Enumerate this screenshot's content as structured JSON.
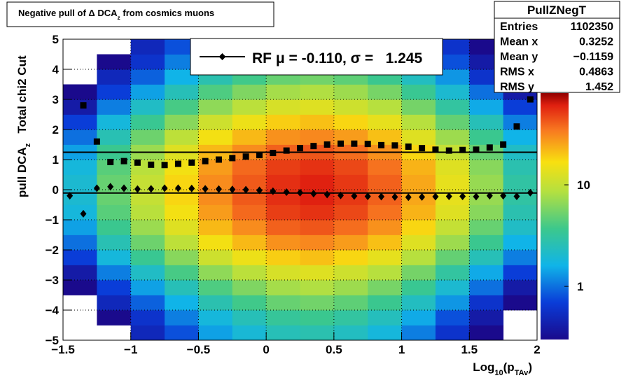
{
  "chart_data": {
    "type": "heatmap2d",
    "title_parts": [
      {
        "text": "Negative pull of Δ DCA"
      },
      {
        "text": "z",
        "sub": true
      },
      {
        "text": " from cosmics muons"
      }
    ],
    "xlabel_parts": [
      {
        "text": "Log"
      },
      {
        "text": "10",
        "sub": true
      },
      {
        "text": "(p"
      },
      {
        "text": "TAv",
        "sub": true
      },
      {
        "text": ")"
      }
    ],
    "ylabel_parts": [
      {
        "text": "pull DCA"
      },
      {
        "text": "z",
        "sub": true
      },
      {
        "text": "   Total chi2 Cut"
      }
    ],
    "xlim": [
      -1.5,
      2
    ],
    "ylim": [
      -5,
      5
    ],
    "xticks": [
      {
        "value": -1.5,
        "label": "−1.5"
      },
      {
        "value": -1,
        "label": "−1"
      },
      {
        "value": -0.5,
        "label": "−0.5"
      },
      0,
      0.5,
      1,
      1.5,
      2
    ],
    "yticks": [
      {
        "value": -5,
        "label": "−5"
      },
      {
        "value": -4,
        "label": "−4"
      },
      {
        "value": -3,
        "label": "−3"
      },
      {
        "value": -2,
        "label": "−2"
      },
      {
        "value": -1,
        "label": "−1"
      },
      0,
      1,
      2,
      3,
      4,
      5
    ],
    "grid": true,
    "zlim": [
      0.3,
      80
    ],
    "zticks": [
      1,
      10
    ],
    "zscale": "log",
    "xbins": [
      -1.5,
      -1.25,
      -1,
      -0.75,
      -0.5,
      -0.25,
      0,
      0.25,
      0.5,
      0.75,
      1,
      1.25,
      1.5,
      1.75,
      2
    ],
    "ybins": [
      -5,
      -4.5,
      -4,
      -3.5,
      -3,
      -2.5,
      -2,
      -1.5,
      -1,
      -0.5,
      0,
      0.5,
      1,
      1.5,
      2,
      2.5,
      3,
      3.5,
      4,
      4.5,
      5
    ],
    "z": [
      [
        0.1,
        0.1,
        0.2,
        0.3,
        0.4,
        0.7,
        1,
        1.4,
        1.8,
        2,
        2,
        1.8,
        1.4,
        1,
        0.7,
        0.4,
        0.3,
        0.2,
        0.1,
        0.1
      ],
      [
        0.2,
        0.3,
        0.5,
        0.7,
        1.1,
        1.8,
        2.6,
        3.6,
        4.5,
        5,
        5,
        4.5,
        3.6,
        2.6,
        1.8,
        1.1,
        0.7,
        0.5,
        0.3,
        0.2
      ],
      [
        0.5,
        0.6,
        0.9,
        1.4,
        2.2,
        3.5,
        5.2,
        7.2,
        9,
        10,
        10,
        9,
        7.2,
        5.2,
        3.5,
        2.2,
        1.4,
        0.9,
        0.6,
        0.5
      ],
      [
        0.8,
        1.1,
        1.6,
        2.5,
        4,
        6.3,
        9.4,
        13,
        16,
        18,
        18,
        16,
        13,
        9.4,
        6.3,
        4,
        2.5,
        1.6,
        1.1,
        0.8
      ],
      [
        1.4,
        1.8,
        2.7,
        4.2,
        6.6,
        11,
        16,
        22,
        27,
        30,
        30,
        27,
        22,
        16,
        11,
        6.6,
        4.2,
        2.7,
        1.8,
        1.4
      ],
      [
        1.9,
        2.5,
        3.8,
        5.9,
        9.2,
        15,
        22,
        30,
        38,
        42,
        42,
        38,
        30,
        22,
        15,
        9.2,
        5.9,
        3.8,
        2.5,
        1.9
      ],
      [
        2.5,
        3.3,
        5,
        7.7,
        12,
        19,
        29,
        40,
        50,
        55,
        55,
        50,
        40,
        29,
        19,
        12,
        7.7,
        5,
        3.3,
        2.5
      ],
      [
        2.7,
        3.6,
        5.4,
        8.4,
        13,
        21,
        31,
        43,
        54,
        60,
        60,
        54,
        43,
        31,
        21,
        13,
        8.4,
        5.4,
        3.6,
        2.7
      ],
      [
        2.3,
        3.1,
        4.7,
        7.3,
        11,
        18,
        27,
        37,
        47,
        52,
        52,
        47,
        37,
        27,
        18,
        11,
        7.3,
        4.7,
        3.1,
        2.3
      ],
      [
        1.8,
        2.4,
        3.6,
        5.6,
        8.8,
        14,
        21,
        29,
        36,
        40,
        40,
        36,
        29,
        21,
        14,
        8.8,
        5.6,
        3.6,
        2.4,
        1.8
      ],
      [
        1.1,
        1.5,
        2.3,
        3.5,
        5.5,
        8.8,
        13,
        18,
        23,
        25,
        25,
        23,
        18,
        13,
        8.8,
        5.5,
        3.5,
        2.3,
        1.5,
        1.1
      ],
      [
        0.6,
        0.8,
        1.3,
        2,
        3.1,
        4.9,
        7.3,
        10,
        13,
        14,
        14,
        13,
        10,
        7.3,
        4.9,
        3.1,
        2,
        1.3,
        0.8,
        0.6
      ],
      [
        0.3,
        0.4,
        0.6,
        1,
        1.5,
        2.5,
        3.6,
        5,
        6.3,
        7,
        7,
        6.3,
        5,
        3.6,
        2.5,
        1.5,
        1,
        0.6,
        0.4,
        0.3
      ],
      [
        0.1,
        0.2,
        0.3,
        0.4,
        0.7,
        1.1,
        1.6,
        2.2,
        2.7,
        3,
        3,
        2.7,
        2.2,
        1.6,
        1.1,
        0.7,
        0.4,
        0.3,
        0.2,
        0.1
      ]
    ],
    "x": [
      -1.45,
      -1.35,
      -1.25,
      -1.15,
      -1.05,
      -0.95,
      -0.85,
      -0.75,
      -0.65,
      -0.55,
      -0.45,
      -0.35,
      -0.25,
      -0.15,
      -0.05,
      0.05,
      0.15,
      0.25,
      0.35,
      0.45,
      0.55,
      0.65,
      0.75,
      0.85,
      0.95,
      1.05,
      1.15,
      1.25,
      1.35,
      1.45,
      1.55,
      1.65,
      1.75,
      1.85,
      1.95
    ],
    "series": [
      {
        "marker": "square",
        "color": "#000000",
        "values": [
          null,
          2.8,
          1.6,
          0.92,
          0.95,
          0.9,
          0.83,
          0.82,
          0.86,
          0.9,
          0.95,
          1.0,
          1.05,
          1.1,
          1.15,
          1.22,
          1.3,
          1.38,
          1.45,
          1.5,
          1.53,
          1.53,
          1.52,
          1.48,
          1.47,
          1.43,
          1.38,
          1.33,
          1.3,
          1.32,
          1.33,
          1.4,
          1.5,
          2.1,
          3.0
        ]
      },
      {
        "marker": "diamond",
        "color": "#000000",
        "values": [
          -0.2,
          -0.8,
          0.05,
          0.1,
          0.05,
          0.02,
          0.03,
          0.05,
          0.05,
          0.04,
          0.03,
          0.02,
          0.01,
          0.0,
          -0.02,
          -0.05,
          -0.08,
          -0.1,
          -0.13,
          -0.16,
          -0.19,
          -0.21,
          -0.22,
          -0.23,
          -0.24,
          -0.25,
          -0.24,
          -0.23,
          -0.22,
          -0.22,
          -0.23,
          -0.2,
          -0.2,
          -0.22,
          -0.1
        ]
      }
    ],
    "fit": {
      "mu": -0.11,
      "sigma": 1.245,
      "color": "#000000"
    },
    "legend": {
      "text": "RF μ = -0.110, σ =   1.245"
    },
    "stats": {
      "title": "PullZNegT",
      "rows": [
        [
          "Entries",
          "1102350"
        ],
        [
          "Mean x",
          "0.3252"
        ],
        [
          "Mean y",
          "−0.1159"
        ],
        [
          "RMS x",
          "0.4863"
        ],
        [
          "RMS y",
          "1.452"
        ]
      ]
    }
  }
}
